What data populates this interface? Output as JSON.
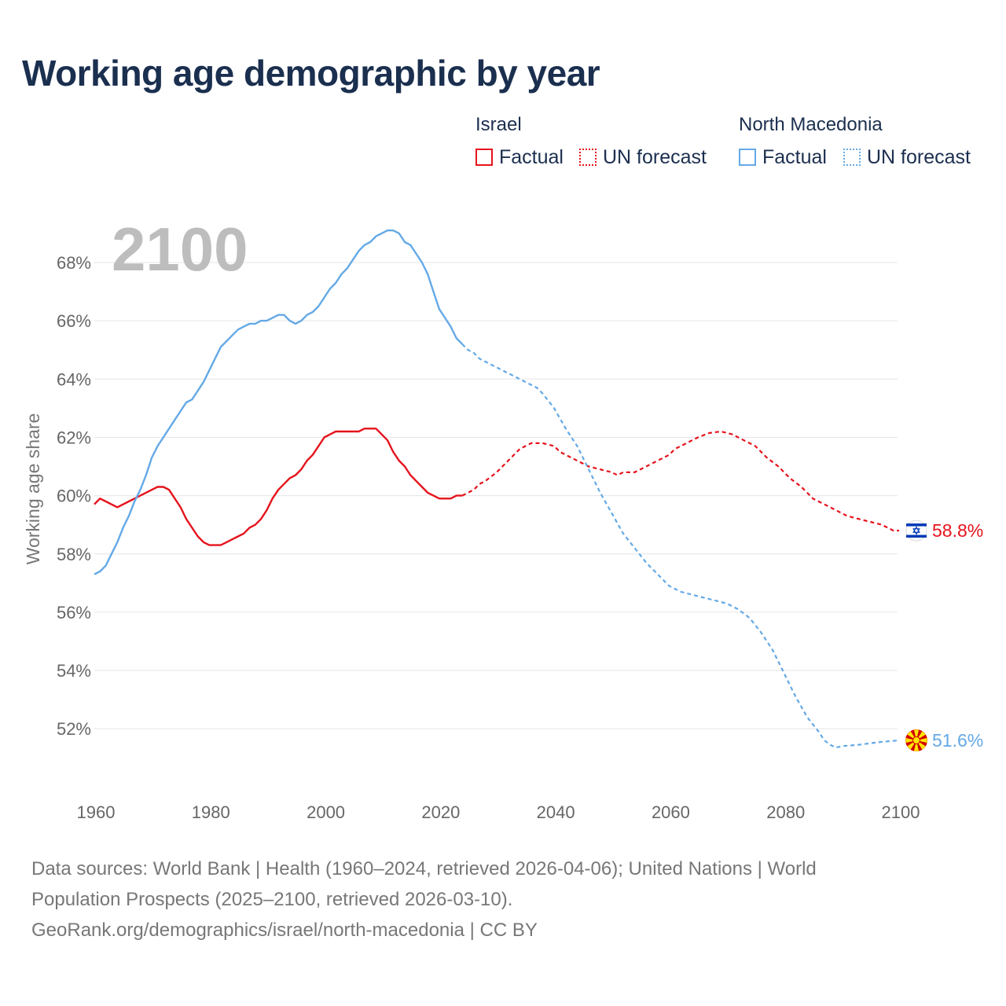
{
  "title": "Working age demographic by year",
  "legend": {
    "groups": [
      {
        "name": "Israel",
        "factual_label": "Factual",
        "forecast_label": "UN forecast",
        "color": "#e5131c"
      },
      {
        "name": "North Macedonia",
        "factual_label": "Factual",
        "forecast_label": "UN forecast",
        "color": "#64a9e6"
      }
    ]
  },
  "sources": {
    "line1": "Data sources: World Bank | Health (1960–2024, retrieved 2026-04-06); United Nations | World",
    "line2": "Population Prospects (2025–2100, retrieved 2026-03-10).",
    "line3": "GeoRank.org/demographics/israel/north-macedonia | CC BY"
  },
  "chart_data": {
    "type": "line",
    "title": "Working age demographic by year",
    "ylabel": "Working age share",
    "xlabel": "",
    "xlim": [
      1960,
      2100
    ],
    "ylim": [
      50.2,
      69.6
    ],
    "x_ticks": [
      1960,
      1980,
      2000,
      2020,
      2040,
      2060,
      2080,
      2100
    ],
    "y_ticks": [
      52,
      54,
      56,
      58,
      60,
      62,
      64,
      66,
      68
    ],
    "y_tick_labels": [
      "52%",
      "54%",
      "56%",
      "58%",
      "60%",
      "62%",
      "64%",
      "66%",
      "68%"
    ],
    "watermark_year": "2100",
    "factual_end_year": 2024,
    "series": [
      {
        "name": "Israel",
        "color": "#e5131c",
        "end_label": "58.8%",
        "flag_icon": "israel-flag-icon",
        "points": [
          [
            1960,
            59.7
          ],
          [
            1961,
            59.9
          ],
          [
            1962,
            59.8
          ],
          [
            1964,
            59.6
          ],
          [
            1966,
            59.8
          ],
          [
            1968,
            60.0
          ],
          [
            1970,
            60.2
          ],
          [
            1971,
            60.3
          ],
          [
            1972,
            60.3
          ],
          [
            1973,
            60.2
          ],
          [
            1974,
            59.9
          ],
          [
            1975,
            59.6
          ],
          [
            1976,
            59.2
          ],
          [
            1977,
            58.9
          ],
          [
            1978,
            58.6
          ],
          [
            1979,
            58.4
          ],
          [
            1980,
            58.3
          ],
          [
            1981,
            58.3
          ],
          [
            1982,
            58.3
          ],
          [
            1983,
            58.4
          ],
          [
            1984,
            58.5
          ],
          [
            1985,
            58.6
          ],
          [
            1986,
            58.7
          ],
          [
            1987,
            58.9
          ],
          [
            1988,
            59.0
          ],
          [
            1989,
            59.2
          ],
          [
            1990,
            59.5
          ],
          [
            1991,
            59.9
          ],
          [
            1992,
            60.2
          ],
          [
            1993,
            60.4
          ],
          [
            1994,
            60.6
          ],
          [
            1995,
            60.7
          ],
          [
            1996,
            60.9
          ],
          [
            1997,
            61.2
          ],
          [
            1998,
            61.4
          ],
          [
            1999,
            61.7
          ],
          [
            2000,
            62.0
          ],
          [
            2001,
            62.1
          ],
          [
            2002,
            62.2
          ],
          [
            2003,
            62.2
          ],
          [
            2004,
            62.2
          ],
          [
            2005,
            62.2
          ],
          [
            2006,
            62.2
          ],
          [
            2007,
            62.3
          ],
          [
            2008,
            62.3
          ],
          [
            2009,
            62.3
          ],
          [
            2010,
            62.1
          ],
          [
            2011,
            61.9
          ],
          [
            2012,
            61.5
          ],
          [
            2013,
            61.2
          ],
          [
            2014,
            61.0
          ],
          [
            2015,
            60.7
          ],
          [
            2016,
            60.5
          ],
          [
            2017,
            60.3
          ],
          [
            2018,
            60.1
          ],
          [
            2019,
            60.0
          ],
          [
            2020,
            59.9
          ],
          [
            2021,
            59.9
          ],
          [
            2022,
            59.9
          ],
          [
            2023,
            60.0
          ],
          [
            2024,
            60.0
          ],
          [
            2025,
            60.1
          ],
          [
            2026,
            60.2
          ],
          [
            2027,
            60.4
          ],
          [
            2028,
            60.5
          ],
          [
            2030,
            60.8
          ],
          [
            2032,
            61.2
          ],
          [
            2034,
            61.6
          ],
          [
            2036,
            61.8
          ],
          [
            2037,
            61.8
          ],
          [
            2038,
            61.8
          ],
          [
            2040,
            61.7
          ],
          [
            2041,
            61.5
          ],
          [
            2043,
            61.3
          ],
          [
            2046,
            61.0
          ],
          [
            2050,
            60.8
          ],
          [
            2051,
            60.7
          ],
          [
            2052,
            60.8
          ],
          [
            2054,
            60.8
          ],
          [
            2056,
            61.0
          ],
          [
            2058,
            61.2
          ],
          [
            2060,
            61.4
          ],
          [
            2061,
            61.6
          ],
          [
            2063,
            61.8
          ],
          [
            2065,
            62.0
          ],
          [
            2067,
            62.15
          ],
          [
            2069,
            62.2
          ],
          [
            2071,
            62.1
          ],
          [
            2073,
            61.9
          ],
          [
            2075,
            61.7
          ],
          [
            2077,
            61.3
          ],
          [
            2079,
            61.0
          ],
          [
            2081,
            60.6
          ],
          [
            2083,
            60.3
          ],
          [
            2085,
            59.9
          ],
          [
            2087,
            59.7
          ],
          [
            2089,
            59.5
          ],
          [
            2091,
            59.3
          ],
          [
            2093,
            59.2
          ],
          [
            2095,
            59.1
          ],
          [
            2097,
            59.0
          ],
          [
            2099,
            58.8
          ],
          [
            2100,
            58.8
          ]
        ]
      },
      {
        "name": "North Macedonia",
        "color": "#64a9e6",
        "end_label": "51.6%",
        "flag_icon": "north-macedonia-flag-icon",
        "points": [
          [
            1960,
            57.3
          ],
          [
            1961,
            57.4
          ],
          [
            1962,
            57.6
          ],
          [
            1963,
            58.0
          ],
          [
            1964,
            58.4
          ],
          [
            1965,
            58.9
          ],
          [
            1966,
            59.3
          ],
          [
            1967,
            59.8
          ],
          [
            1968,
            60.2
          ],
          [
            1969,
            60.7
          ],
          [
            1970,
            61.3
          ],
          [
            1971,
            61.7
          ],
          [
            1972,
            62.0
          ],
          [
            1973,
            62.3
          ],
          [
            1974,
            62.6
          ],
          [
            1975,
            62.9
          ],
          [
            1976,
            63.2
          ],
          [
            1977,
            63.3
          ],
          [
            1978,
            63.6
          ],
          [
            1979,
            63.9
          ],
          [
            1980,
            64.3
          ],
          [
            1981,
            64.7
          ],
          [
            1982,
            65.1
          ],
          [
            1983,
            65.3
          ],
          [
            1984,
            65.5
          ],
          [
            1985,
            65.7
          ],
          [
            1986,
            65.8
          ],
          [
            1987,
            65.9
          ],
          [
            1988,
            65.9
          ],
          [
            1989,
            66.0
          ],
          [
            1990,
            66.0
          ],
          [
            1991,
            66.1
          ],
          [
            1992,
            66.2
          ],
          [
            1993,
            66.2
          ],
          [
            1994,
            66.0
          ],
          [
            1995,
            65.9
          ],
          [
            1996,
            66.0
          ],
          [
            1997,
            66.2
          ],
          [
            1998,
            66.3
          ],
          [
            1999,
            66.5
          ],
          [
            2000,
            66.8
          ],
          [
            2001,
            67.1
          ],
          [
            2002,
            67.3
          ],
          [
            2003,
            67.6
          ],
          [
            2004,
            67.8
          ],
          [
            2005,
            68.1
          ],
          [
            2006,
            68.4
          ],
          [
            2007,
            68.6
          ],
          [
            2008,
            68.7
          ],
          [
            2009,
            68.9
          ],
          [
            2010,
            69.0
          ],
          [
            2011,
            69.1
          ],
          [
            2012,
            69.1
          ],
          [
            2013,
            69.0
          ],
          [
            2014,
            68.7
          ],
          [
            2015,
            68.6
          ],
          [
            2016,
            68.3
          ],
          [
            2017,
            68.0
          ],
          [
            2018,
            67.6
          ],
          [
            2019,
            67.0
          ],
          [
            2020,
            66.4
          ],
          [
            2021,
            66.1
          ],
          [
            2022,
            65.8
          ],
          [
            2023,
            65.4
          ],
          [
            2024,
            65.2
          ],
          [
            2025,
            65.0
          ],
          [
            2026,
            64.9
          ],
          [
            2027,
            64.7
          ],
          [
            2028,
            64.6
          ],
          [
            2030,
            64.4
          ],
          [
            2032,
            64.2
          ],
          [
            2034,
            64.0
          ],
          [
            2036,
            63.8
          ],
          [
            2037,
            63.7
          ],
          [
            2038,
            63.5
          ],
          [
            2040,
            63.0
          ],
          [
            2042,
            62.3
          ],
          [
            2044,
            61.7
          ],
          [
            2046,
            60.9
          ],
          [
            2048,
            60.1
          ],
          [
            2050,
            59.4
          ],
          [
            2052,
            58.7
          ],
          [
            2054,
            58.2
          ],
          [
            2056,
            57.7
          ],
          [
            2058,
            57.3
          ],
          [
            2060,
            56.9
          ],
          [
            2062,
            56.7
          ],
          [
            2064,
            56.6
          ],
          [
            2066,
            56.5
          ],
          [
            2068,
            56.4
          ],
          [
            2070,
            56.3
          ],
          [
            2072,
            56.1
          ],
          [
            2074,
            55.8
          ],
          [
            2076,
            55.3
          ],
          [
            2078,
            54.7
          ],
          [
            2080,
            53.9
          ],
          [
            2082,
            53.1
          ],
          [
            2084,
            52.4
          ],
          [
            2086,
            51.9
          ],
          [
            2087,
            51.6
          ],
          [
            2088,
            51.45
          ],
          [
            2089,
            51.35
          ],
          [
            2090,
            51.4
          ],
          [
            2093,
            51.45
          ],
          [
            2095,
            51.5
          ],
          [
            2097,
            51.55
          ],
          [
            2100,
            51.6
          ]
        ]
      }
    ]
  }
}
